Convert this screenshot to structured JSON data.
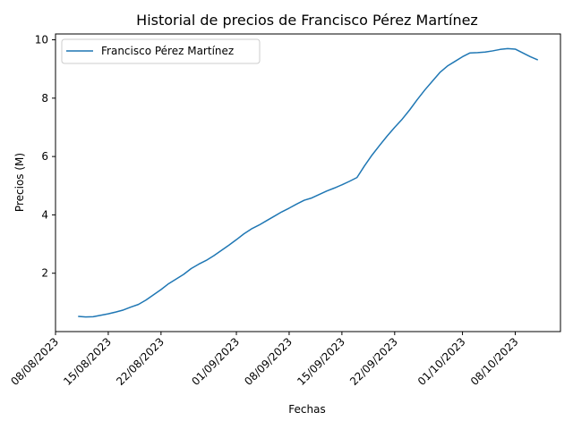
{
  "chart_data": {
    "type": "line",
    "title": "Historial de precios de Francisco Pérez Martínez",
    "xlabel": "Fechas",
    "ylabel": "Precios (M)",
    "x_ticks": [
      "08/08/2023",
      "15/08/2023",
      "22/08/2023",
      "01/09/2023",
      "08/09/2023",
      "15/09/2023",
      "22/09/2023",
      "01/10/2023",
      "08/10/2023"
    ],
    "y_ticks": [
      2,
      4,
      6,
      8,
      10
    ],
    "ylim": [
      0,
      10.2
    ],
    "xlim": [
      "08/08/2023",
      "14/10/2023"
    ],
    "legend": "upper left",
    "grid": false,
    "color": "#1f77b4",
    "series": [
      {
        "name": "Francisco Pérez Martínez",
        "x": [
          "11/08/2023",
          "12/08/2023",
          "13/08/2023",
          "14/08/2023",
          "15/08/2023",
          "16/08/2023",
          "17/08/2023",
          "18/08/2023",
          "19/08/2023",
          "20/08/2023",
          "21/08/2023",
          "22/08/2023",
          "23/08/2023",
          "24/08/2023",
          "25/08/2023",
          "26/08/2023",
          "27/08/2023",
          "28/08/2023",
          "29/08/2023",
          "30/08/2023",
          "31/08/2023",
          "01/09/2023",
          "02/09/2023",
          "03/09/2023",
          "04/09/2023",
          "05/09/2023",
          "06/09/2023",
          "07/09/2023",
          "08/09/2023",
          "09/09/2023",
          "10/09/2023",
          "11/09/2023",
          "12/09/2023",
          "13/09/2023",
          "14/09/2023",
          "15/09/2023",
          "16/09/2023",
          "17/09/2023",
          "18/09/2023",
          "19/09/2023",
          "20/09/2023",
          "21/09/2023",
          "22/09/2023",
          "23/09/2023",
          "24/09/2023",
          "25/09/2023",
          "26/09/2023",
          "27/09/2023",
          "28/09/2023",
          "29/09/2023",
          "30/09/2023",
          "01/10/2023",
          "02/10/2023",
          "03/10/2023",
          "04/10/2023",
          "05/10/2023",
          "06/10/2023",
          "07/10/2023",
          "08/10/2023",
          "09/10/2023",
          "10/10/2023",
          "11/10/2023"
        ],
        "y": [
          0.52,
          0.5,
          0.51,
          0.56,
          0.61,
          0.67,
          0.74,
          0.84,
          0.93,
          1.08,
          1.26,
          1.44,
          1.64,
          1.8,
          1.96,
          2.16,
          2.31,
          2.44,
          2.6,
          2.78,
          2.96,
          3.15,
          3.35,
          3.52,
          3.65,
          3.8,
          3.95,
          4.1,
          4.23,
          4.37,
          4.5,
          4.58,
          4.7,
          4.82,
          4.92,
          5.03,
          5.15,
          5.28,
          5.68,
          6.05,
          6.38,
          6.7,
          7.0,
          7.28,
          7.6,
          7.95,
          8.28,
          8.58,
          8.88,
          9.1,
          9.26,
          9.42,
          9.55,
          9.56,
          9.58,
          9.62,
          9.67,
          9.7,
          9.68,
          9.55,
          9.42,
          9.31
        ]
      }
    ]
  }
}
